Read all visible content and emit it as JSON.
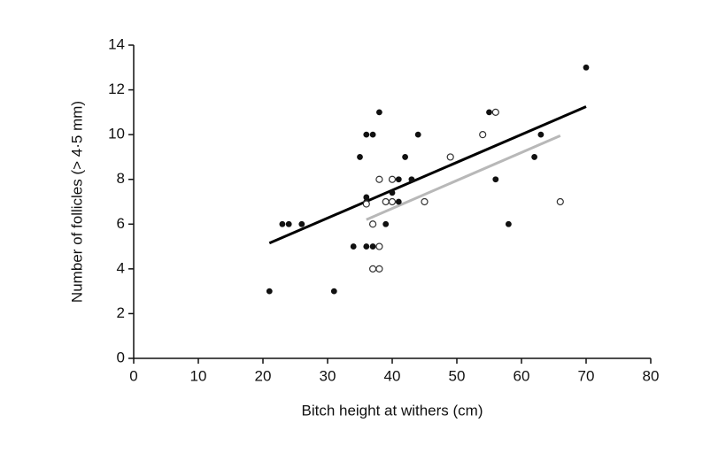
{
  "chart_data": {
    "type": "scatter",
    "xlabel": "Bitch height at withers (cm)",
    "ylabel": "Number of follicles (> 4·5 mm)",
    "xlim": [
      0,
      80
    ],
    "xticks": [
      0,
      10,
      20,
      30,
      40,
      50,
      60,
      70,
      80
    ],
    "ylim": [
      0,
      14
    ],
    "yticks": [
      0,
      2,
      4,
      6,
      8,
      10,
      12,
      14
    ],
    "series": [
      {
        "type": "scatter",
        "marker": "filled",
        "color": "#111111",
        "x": [
          21,
          23,
          24,
          26,
          31,
          34,
          35,
          36,
          37,
          36,
          36,
          36,
          37,
          38,
          39,
          40,
          41,
          41,
          42,
          43,
          44,
          55,
          56,
          58,
          62,
          63,
          70
        ],
        "values": [
          3,
          6,
          6,
          6,
          3,
          5,
          9,
          10,
          10,
          7,
          7.2,
          5,
          5,
          11,
          6,
          7.4,
          8,
          7,
          9,
          8,
          10,
          11,
          8,
          6,
          9,
          10,
          13
        ]
      },
      {
        "type": "scatter",
        "marker": "hollow",
        "color": "#333333",
        "x": [
          36,
          37,
          37,
          38,
          38,
          38,
          39,
          40,
          40,
          45,
          49,
          54,
          56,
          66
        ],
        "values": [
          6.9,
          6,
          4,
          4,
          5,
          8,
          7,
          7,
          8,
          7,
          9,
          10,
          11,
          7
        ]
      },
      {
        "type": "line",
        "color": "#000000",
        "x": [
          21,
          70
        ],
        "values": [
          5.15,
          11.25
        ]
      },
      {
        "type": "line",
        "color": "#b8b8b8",
        "x": [
          36,
          66
        ],
        "values": [
          6.2,
          9.95
        ]
      }
    ]
  }
}
